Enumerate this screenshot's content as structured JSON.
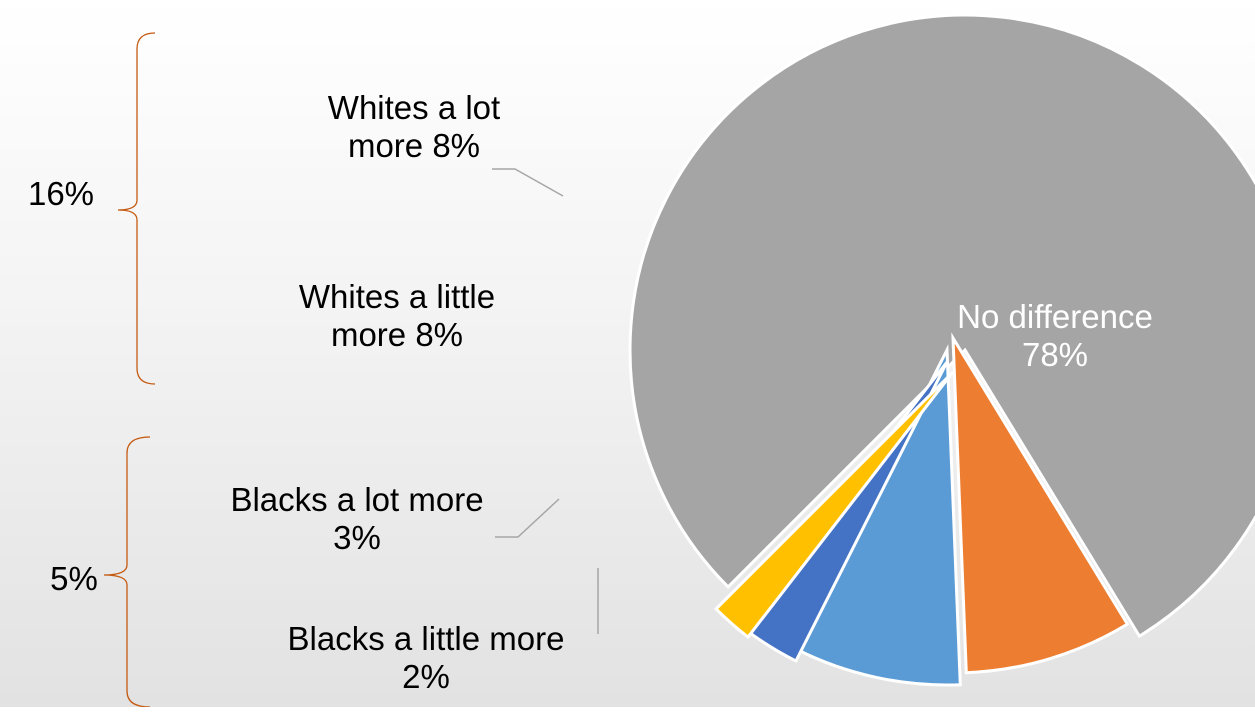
{
  "chart_data": {
    "type": "pie",
    "title": "",
    "slices": [
      {
        "label": "No difference",
        "value": 78,
        "value_label": "78%",
        "color": "#A5A5A5"
      },
      {
        "label": "Whites a lot more",
        "value": 8,
        "value_label": "8%",
        "color": "#ED7D31"
      },
      {
        "label": "Whites a little more",
        "value": 8,
        "value_label": "8%",
        "color": "#5B9BD5"
      },
      {
        "label": "Blacks a lot more",
        "value": 3,
        "value_label": "3%",
        "color": "#4472C4"
      },
      {
        "label": "Blacks a little more",
        "value": 2,
        "value_label": "2%",
        "color": "#FFC000"
      }
    ],
    "groups": [
      {
        "label": "16%",
        "color": "#C55A11"
      },
      {
        "label": "5%",
        "color": "#C55A11"
      }
    ]
  }
}
